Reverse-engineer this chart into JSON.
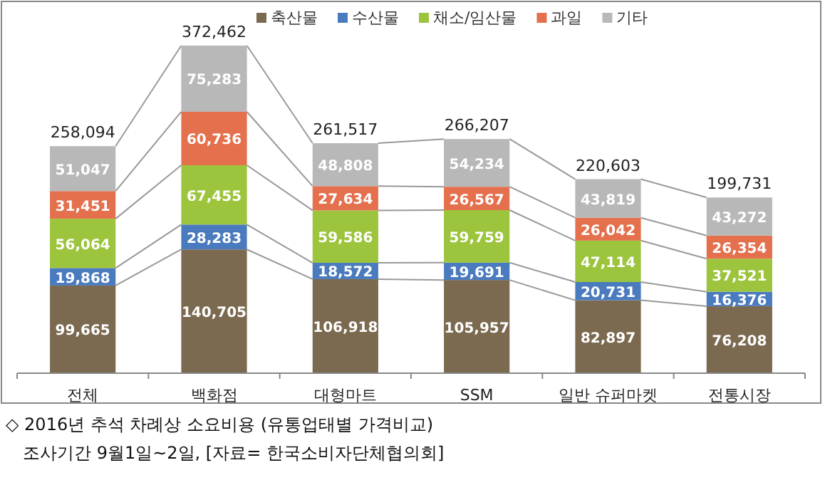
{
  "chart_data": {
    "type": "bar",
    "stacked": true,
    "legend": "top",
    "categories": [
      "전체",
      "백화점",
      "대형마트",
      "SSM",
      "일반 슈퍼마켓",
      "전통시장"
    ],
    "series": [
      {
        "name": "축산물",
        "color": "#7b6a50",
        "values": [
          99665,
          140705,
          106918,
          105957,
          82897,
          76208
        ],
        "value_labels": [
          "99,665",
          "140,705",
          "106,918",
          "105,957",
          "82,897",
          "76,208"
        ]
      },
      {
        "name": "수산물",
        "color": "#4a7bbf",
        "values": [
          19868,
          28283,
          18572,
          19691,
          20731,
          16376
        ],
        "value_labels": [
          "19,868",
          "28,283",
          "18,572",
          "19,691",
          "20,731",
          "16,376"
        ]
      },
      {
        "name": "채소/임산물",
        "color": "#9cc43c",
        "values": [
          56064,
          67455,
          59586,
          59759,
          47114,
          37521
        ],
        "value_labels": [
          "56,064",
          "67,455",
          "59,586",
          "59,759",
          "47,114",
          "37,521"
        ]
      },
      {
        "name": "과일",
        "color": "#e4704d",
        "values": [
          31451,
          60736,
          27634,
          26567,
          26042,
          26354
        ],
        "value_labels": [
          "31,451",
          "60,736",
          "27,634",
          "26,567",
          "26,042",
          "26,354"
        ]
      },
      {
        "name": "기타",
        "color": "#b8b8b8",
        "values": [
          51047,
          75283,
          48808,
          54234,
          43819,
          43272
        ],
        "value_labels": [
          "51,047",
          "75,283",
          "48,808",
          "54,234",
          "43,819",
          "43,272"
        ]
      }
    ],
    "totals": [
      "258,094",
      "372,462",
      "261,517",
      "266,207",
      "220,603",
      "199,731"
    ],
    "annotations": [
      "◇ 2016년 추석 차례상 소요비용 (유통업태별 가격비교)",
      "조사기간 9월1일~2일, [자료= 한국소비자단체협의회]"
    ]
  }
}
